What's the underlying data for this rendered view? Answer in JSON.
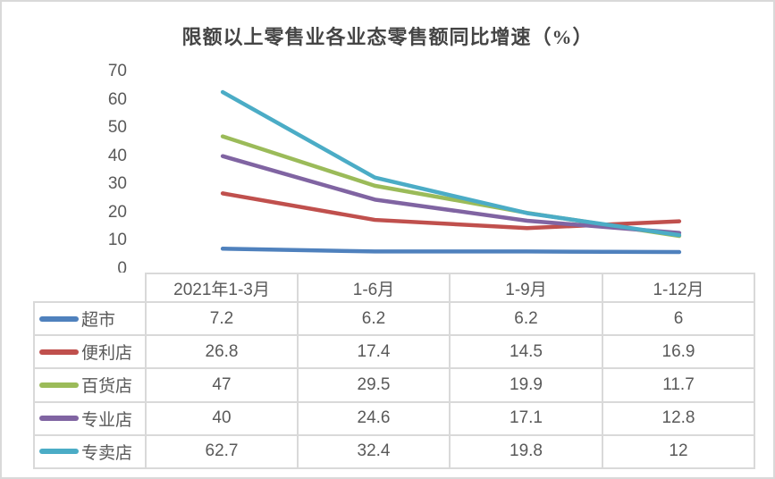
{
  "colors": {
    "background": "#ffffff",
    "border": "#d9d9d9",
    "axis_text": "#595959",
    "title_text": "#454545"
  },
  "chart_data": {
    "type": "line",
    "title": "限额以上零售业各业态零售额同比增速（%）",
    "categories": [
      "2021年1-3月",
      "1-6月",
      "1-9月",
      "1-12月"
    ],
    "series": [
      {
        "name": "超市",
        "color": "#4F81BD",
        "values": [
          7.2,
          6.2,
          6.2,
          6
        ]
      },
      {
        "name": "便利店",
        "color": "#C0504D",
        "values": [
          26.8,
          17.4,
          14.5,
          16.9
        ]
      },
      {
        "name": "百货店",
        "color": "#9BBB59",
        "values": [
          47,
          29.5,
          19.9,
          11.7
        ]
      },
      {
        "name": "专业店",
        "color": "#8064A2",
        "values": [
          40,
          24.6,
          17.1,
          12.8
        ]
      },
      {
        "name": "专卖店",
        "color": "#4BACC6",
        "values": [
          62.7,
          32.4,
          19.8,
          12
        ]
      }
    ],
    "ylim": [
      0,
      70
    ],
    "yticks": [
      0,
      10,
      20,
      30,
      40,
      50,
      60,
      70
    ],
    "grid": false,
    "legend_position": "data-table-left",
    "xlabel": "",
    "ylabel": ""
  }
}
